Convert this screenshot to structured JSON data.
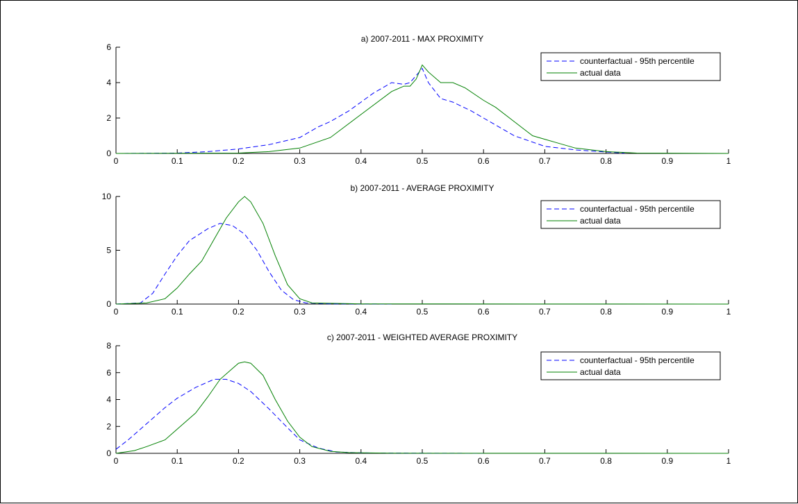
{
  "colors": {
    "counterfactual": "#0000ff",
    "actual": "#008000",
    "axis": "#000000"
  },
  "chart_data": [
    {
      "type": "line",
      "title": "a)  2007-2011 - MAX PROXIMITY",
      "xlim": [
        0,
        1
      ],
      "ylim": [
        0,
        6
      ],
      "xticks": [
        0,
        0.1,
        0.2,
        0.3,
        0.4,
        0.5,
        0.6,
        0.7,
        0.8,
        0.9,
        1
      ],
      "xtick_labels": [
        "0",
        "0.1",
        "0.2",
        "0.3",
        "0.4",
        "0.5",
        "0.6",
        "0.7",
        "0.8",
        "0.9",
        "1"
      ],
      "yticks": [
        0,
        2,
        4,
        6
      ],
      "ytick_labels": [
        "0",
        "2",
        "4",
        "6"
      ],
      "legend_position": "top-right",
      "series": [
        {
          "name": "counterfactual - 95th percentile",
          "style": "dashed",
          "color": "#0000ff",
          "x": [
            0,
            0.1,
            0.15,
            0.2,
            0.25,
            0.3,
            0.33,
            0.35,
            0.38,
            0.4,
            0.42,
            0.45,
            0.47,
            0.48,
            0.5,
            0.51,
            0.53,
            0.55,
            0.58,
            0.6,
            0.65,
            0.7,
            0.75,
            0.8,
            0.83
          ],
          "y": [
            0,
            0.02,
            0.1,
            0.25,
            0.5,
            0.9,
            1.5,
            1.8,
            2.4,
            2.9,
            3.4,
            4.0,
            3.9,
            4.0,
            4.8,
            4.0,
            3.1,
            2.9,
            2.4,
            2.0,
            1.0,
            0.4,
            0.2,
            0.08,
            0.02
          ]
        },
        {
          "name": "actual data",
          "style": "solid",
          "color": "#008000",
          "x": [
            0,
            0.2,
            0.25,
            0.3,
            0.35,
            0.4,
            0.45,
            0.47,
            0.48,
            0.49,
            0.5,
            0.51,
            0.53,
            0.55,
            0.57,
            0.6,
            0.62,
            0.65,
            0.68,
            0.7,
            0.72,
            0.75,
            0.8,
            0.85,
            1
          ],
          "y": [
            0,
            0.02,
            0.1,
            0.3,
            0.9,
            2.2,
            3.5,
            3.8,
            3.8,
            4.2,
            5.0,
            4.6,
            4.0,
            4.0,
            3.7,
            3.0,
            2.6,
            1.8,
            1.0,
            0.8,
            0.6,
            0.3,
            0.1,
            0.02,
            0
          ]
        }
      ]
    },
    {
      "type": "line",
      "title": "b)  2007-2011 - AVERAGE PROXIMITY",
      "xlim": [
        0,
        1
      ],
      "ylim": [
        0,
        10
      ],
      "xticks": [
        0,
        0.1,
        0.2,
        0.3,
        0.4,
        0.5,
        0.6,
        0.7,
        0.8,
        0.9,
        1
      ],
      "xtick_labels": [
        "0",
        "0.1",
        "0.2",
        "0.3",
        "0.4",
        "0.5",
        "0.6",
        "0.7",
        "0.8",
        "0.9",
        "1"
      ],
      "yticks": [
        0,
        5,
        10
      ],
      "ytick_labels": [
        "0",
        "5",
        "10"
      ],
      "legend_position": "top-right",
      "series": [
        {
          "name": "counterfactual - 95th percentile",
          "style": "dashed",
          "color": "#0000ff",
          "x": [
            0,
            0.04,
            0.06,
            0.08,
            0.1,
            0.12,
            0.15,
            0.17,
            0.19,
            0.21,
            0.23,
            0.25,
            0.27,
            0.29,
            0.31,
            0.35,
            0.45
          ],
          "y": [
            0,
            0.1,
            1.0,
            2.8,
            4.5,
            5.9,
            7.0,
            7.5,
            7.3,
            6.5,
            5.0,
            3.0,
            1.3,
            0.4,
            0.1,
            0.02,
            0
          ]
        },
        {
          "name": "actual data",
          "style": "solid",
          "color": "#008000",
          "x": [
            0,
            0.05,
            0.08,
            0.1,
            0.12,
            0.14,
            0.16,
            0.18,
            0.2,
            0.21,
            0.22,
            0.24,
            0.26,
            0.28,
            0.3,
            0.32,
            0.4,
            1
          ],
          "y": [
            0,
            0.1,
            0.5,
            1.5,
            2.8,
            4.0,
            6.0,
            8.0,
            9.5,
            10.0,
            9.5,
            7.5,
            4.5,
            1.8,
            0.5,
            0.1,
            0.02,
            0
          ]
        }
      ]
    },
    {
      "type": "line",
      "title": "c)  2007-2011 - WEIGHTED AVERAGE PROXIMITY",
      "xlim": [
        0,
        1
      ],
      "ylim": [
        0,
        8
      ],
      "xticks": [
        0,
        0.1,
        0.2,
        0.3,
        0.4,
        0.5,
        0.6,
        0.7,
        0.8,
        0.9,
        1
      ],
      "xtick_labels": [
        "0",
        "0.1",
        "0.2",
        "0.3",
        "0.4",
        "0.5",
        "0.6",
        "0.7",
        "0.8",
        "0.9",
        "1"
      ],
      "yticks": [
        0,
        2,
        4,
        6,
        8
      ],
      "ytick_labels": [
        "0",
        "2",
        "4",
        "6",
        "8"
      ],
      "legend_position": "top-right",
      "series": [
        {
          "name": "counterfactual - 95th percentile",
          "style": "dashed",
          "color": "#0000ff",
          "x": [
            0,
            0.02,
            0.05,
            0.08,
            0.1,
            0.13,
            0.16,
            0.18,
            0.2,
            0.22,
            0.25,
            0.28,
            0.3,
            0.33,
            0.36,
            0.4,
            0.5,
            0.6
          ],
          "y": [
            0.3,
            1.0,
            2.2,
            3.4,
            4.1,
            4.9,
            5.5,
            5.5,
            5.2,
            4.6,
            3.3,
            1.9,
            1.0,
            0.4,
            0.1,
            0.03,
            0.01,
            0
          ]
        },
        {
          "name": "actual data",
          "style": "solid",
          "color": "#008000",
          "x": [
            0,
            0.03,
            0.05,
            0.08,
            0.1,
            0.13,
            0.15,
            0.17,
            0.19,
            0.2,
            0.21,
            0.22,
            0.24,
            0.26,
            0.28,
            0.3,
            0.32,
            0.35,
            0.38,
            0.45,
            1
          ],
          "y": [
            0,
            0.2,
            0.5,
            1.0,
            1.8,
            3.0,
            4.2,
            5.5,
            6.3,
            6.7,
            6.8,
            6.7,
            5.8,
            4.0,
            2.4,
            1.2,
            0.5,
            0.15,
            0.05,
            0.01,
            0
          ]
        }
      ]
    }
  ]
}
